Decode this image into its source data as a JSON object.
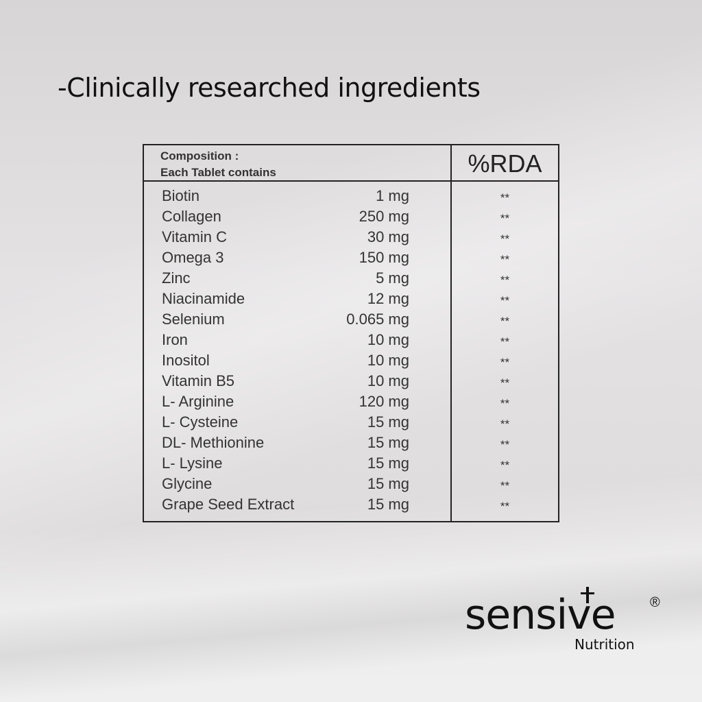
{
  "heading": "-Clinically researched ingredients",
  "table": {
    "header": {
      "line1": "Composition :",
      "line2": "Each Tablet contains",
      "rda": "%RDA"
    },
    "rows": [
      [
        "Biotin",
        "1 mg",
        "**"
      ],
      [
        "Collagen",
        "250 mg",
        "**"
      ],
      [
        "Vitamin C",
        "30 mg",
        "**"
      ],
      [
        "Omega 3",
        "150 mg",
        "**"
      ],
      [
        "Zinc",
        "5 mg",
        "**"
      ],
      [
        "Niacinamide",
        "12 mg",
        "**"
      ],
      [
        "Selenium",
        "0.065 mg",
        "**"
      ],
      [
        "Iron",
        "10 mg",
        "**"
      ],
      [
        "Inositol",
        "10 mg",
        "**"
      ],
      [
        "Vitamin B5",
        "10 mg",
        "**"
      ],
      [
        "L- Arginine",
        "120 mg",
        "**"
      ],
      [
        "L- Cysteine",
        "15 mg",
        "**"
      ],
      [
        "DL- Methionine",
        "15 mg",
        "**"
      ],
      [
        "L- Lysine",
        "15 mg",
        "**"
      ],
      [
        "Glycine",
        "15 mg",
        "**"
      ],
      [
        "Grape Seed Extract",
        "15 mg",
        "**"
      ]
    ]
  },
  "logo": {
    "brand": "sensive",
    "mark": "®",
    "sub": "Nutrition"
  }
}
